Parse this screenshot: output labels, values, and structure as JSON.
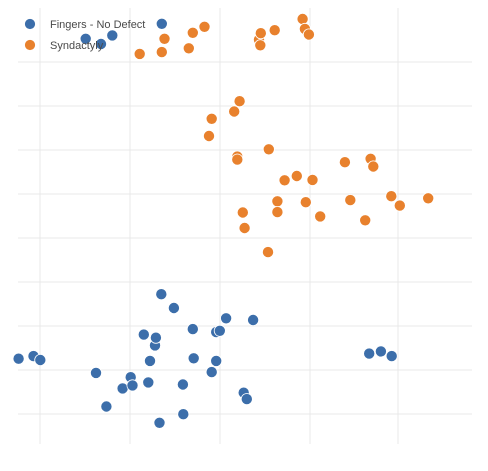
{
  "chart_data": {
    "type": "scatter",
    "title": "",
    "xlabel": "",
    "ylabel": "",
    "xlim": [
      0,
      100
    ],
    "ylim": [
      0,
      100
    ],
    "grid": true,
    "legend_position": "top-left",
    "series": [
      {
        "name": "Fingers - No Defect",
        "color": "#3c6eaa",
        "points": [
          [
            -0.3,
            18.9
          ],
          [
            3.0,
            19.5
          ],
          [
            4.5,
            18.6
          ],
          [
            14.6,
            93.3
          ],
          [
            18.0,
            92.1
          ],
          [
            20.5,
            94.1
          ],
          [
            16.9,
            15.6
          ],
          [
            19.2,
            7.8
          ],
          [
            22.8,
            12.0
          ],
          [
            24.6,
            14.6
          ],
          [
            25.0,
            12.7
          ],
          [
            27.5,
            24.5
          ],
          [
            28.5,
            13.4
          ],
          [
            28.9,
            18.4
          ],
          [
            30.0,
            22.0
          ],
          [
            30.2,
            23.8
          ],
          [
            31.5,
            96.8
          ],
          [
            31.0,
            4.0
          ],
          [
            31.4,
            33.9
          ],
          [
            34.2,
            30.7
          ],
          [
            36.3,
            6.0
          ],
          [
            36.2,
            12.9
          ],
          [
            38.4,
            25.8
          ],
          [
            38.6,
            19.0
          ],
          [
            42.6,
            15.8
          ],
          [
            43.6,
            18.4
          ],
          [
            43.6,
            25.1
          ],
          [
            44.4,
            25.4
          ],
          [
            45.8,
            28.3
          ],
          [
            49.7,
            11.0
          ],
          [
            50.4,
            9.5
          ],
          [
            51.8,
            27.9
          ],
          [
            77.6,
            20.1
          ],
          [
            80.2,
            20.6
          ],
          [
            82.6,
            19.5
          ]
        ]
      },
      {
        "name": "Syndactyly",
        "color": "#e8812d",
        "points": [
          [
            26.6,
            89.8
          ],
          [
            31.5,
            90.2
          ],
          [
            32.1,
            93.3
          ],
          [
            37.5,
            91.1
          ],
          [
            38.4,
            94.7
          ],
          [
            41.0,
            96.1
          ],
          [
            42.0,
            70.7
          ],
          [
            42.6,
            74.7
          ],
          [
            47.6,
            76.4
          ],
          [
            48.3,
            65.9
          ],
          [
            48.3,
            65.2
          ],
          [
            48.8,
            78.8
          ],
          [
            49.5,
            52.9
          ],
          [
            49.9,
            49.3
          ],
          [
            53.1,
            93.1
          ],
          [
            53.4,
            91.8
          ],
          [
            53.5,
            94.6
          ],
          [
            55.3,
            67.6
          ],
          [
            55.1,
            43.7
          ],
          [
            56.6,
            95.3
          ],
          [
            57.2,
            55.5
          ],
          [
            57.2,
            53.0
          ],
          [
            58.8,
            60.4
          ],
          [
            61.5,
            61.4
          ],
          [
            62.8,
            97.9
          ],
          [
            63.3,
            95.6
          ],
          [
            64.2,
            94.3
          ],
          [
            63.5,
            55.3
          ],
          [
            65.0,
            60.5
          ],
          [
            66.7,
            52.0
          ],
          [
            72.2,
            64.6
          ],
          [
            73.4,
            55.8
          ],
          [
            76.7,
            51.1
          ],
          [
            77.9,
            65.4
          ],
          [
            78.5,
            63.6
          ],
          [
            82.5,
            56.7
          ],
          [
            84.4,
            54.5
          ],
          [
            90.7,
            56.2
          ]
        ]
      }
    ]
  }
}
